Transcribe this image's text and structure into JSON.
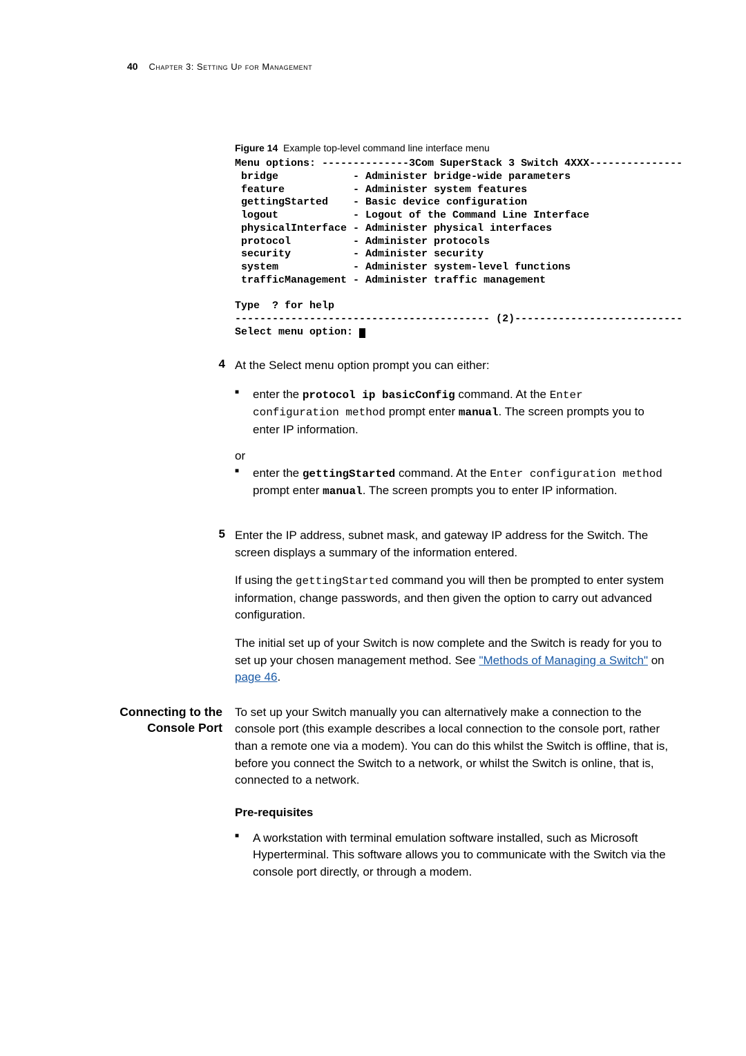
{
  "header": {
    "page_number": "40",
    "chapter": "Chapter 3: Setting Up for Management"
  },
  "figure": {
    "label": "Figure 14",
    "caption": "Example top-level command line interface menu"
  },
  "terminal": {
    "line_menu": "Menu options: --------------3Com SuperStack 3 Switch 4XXX---------------",
    "rows": [
      {
        "cmd": " bridge           ",
        "desc": " - Administer bridge-wide parameters"
      },
      {
        "cmd": " feature          ",
        "desc": " - Administer system features"
      },
      {
        "cmd": " gettingStarted   ",
        "desc": " - Basic device configuration"
      },
      {
        "cmd": " logout           ",
        "desc": " - Logout of the Command Line Interface"
      },
      {
        "cmd": " physicalInterface",
        "desc": " - Administer physical interfaces"
      },
      {
        "cmd": " protocol         ",
        "desc": " - Administer protocols"
      },
      {
        "cmd": " security         ",
        "desc": " - Administer security"
      },
      {
        "cmd": " system           ",
        "desc": " - Administer system-level functions"
      },
      {
        "cmd": " trafficManagement",
        "desc": " - Administer traffic management"
      }
    ],
    "type_help": "Type  ? for help",
    "divider": "----------------------------------------- (2)---------------------------",
    "prompt": "Select menu option: "
  },
  "step4": {
    "num": "4",
    "intro": "At the Select menu option prompt you can either:",
    "bullet1_pre": "enter the ",
    "bullet1_cmd": "protocol ip basicConfig",
    "bullet1_mid": " command. At the ",
    "bullet1_mono1": "Enter configuration method",
    "bullet1_mid2": " prompt enter ",
    "bullet1_cmd2": "manual",
    "bullet1_end": ". The screen prompts you to enter IP information.",
    "or": "or",
    "bullet2_pre": "enter the ",
    "bullet2_cmd": "gettingStarted",
    "bullet2_mid": " command. At the ",
    "bullet2_mono1": "Enter configuration method",
    "bullet2_mid2": " prompt enter ",
    "bullet2_cmd2": "manual",
    "bullet2_end": ". The screen prompts you to enter IP information."
  },
  "step5": {
    "num": "5",
    "text": "Enter the IP address, subnet mask, and gateway IP address for the Switch. The screen displays a summary of the information entered."
  },
  "para_after5_1_pre": "If using the ",
  "para_after5_1_mono": "gettingStarted",
  "para_after5_1_post": " command you will then be prompted to enter system information, change passwords, and then given the option to carry out advanced configuration.",
  "para_after5_2_pre": "The initial set up of your Switch is now complete and the Switch is ready for you to set up your chosen management method. See ",
  "para_after5_2_link1": "\"Methods of Managing a Switch\"",
  "para_after5_2_mid": " on ",
  "para_after5_2_link2": "page 46",
  "para_after5_2_end": ".",
  "side": {
    "label1": "Connecting to the",
    "label2": "Console Port",
    "body": "To set up your Switch manually you can alternatively make a connection to the console port (this example describes a local connection to the console port, rather than a remote one via a modem). You can do this whilst the Switch is offline, that is, before you connect the Switch to a network, or whilst the Switch is online, that is, connected to a network."
  },
  "prereq": {
    "heading": "Pre-requisites",
    "bullet": "A workstation with terminal emulation software installed, such as Microsoft Hyperterminal. This software allows you to communicate with the Switch via the console port directly, or through a modem."
  }
}
